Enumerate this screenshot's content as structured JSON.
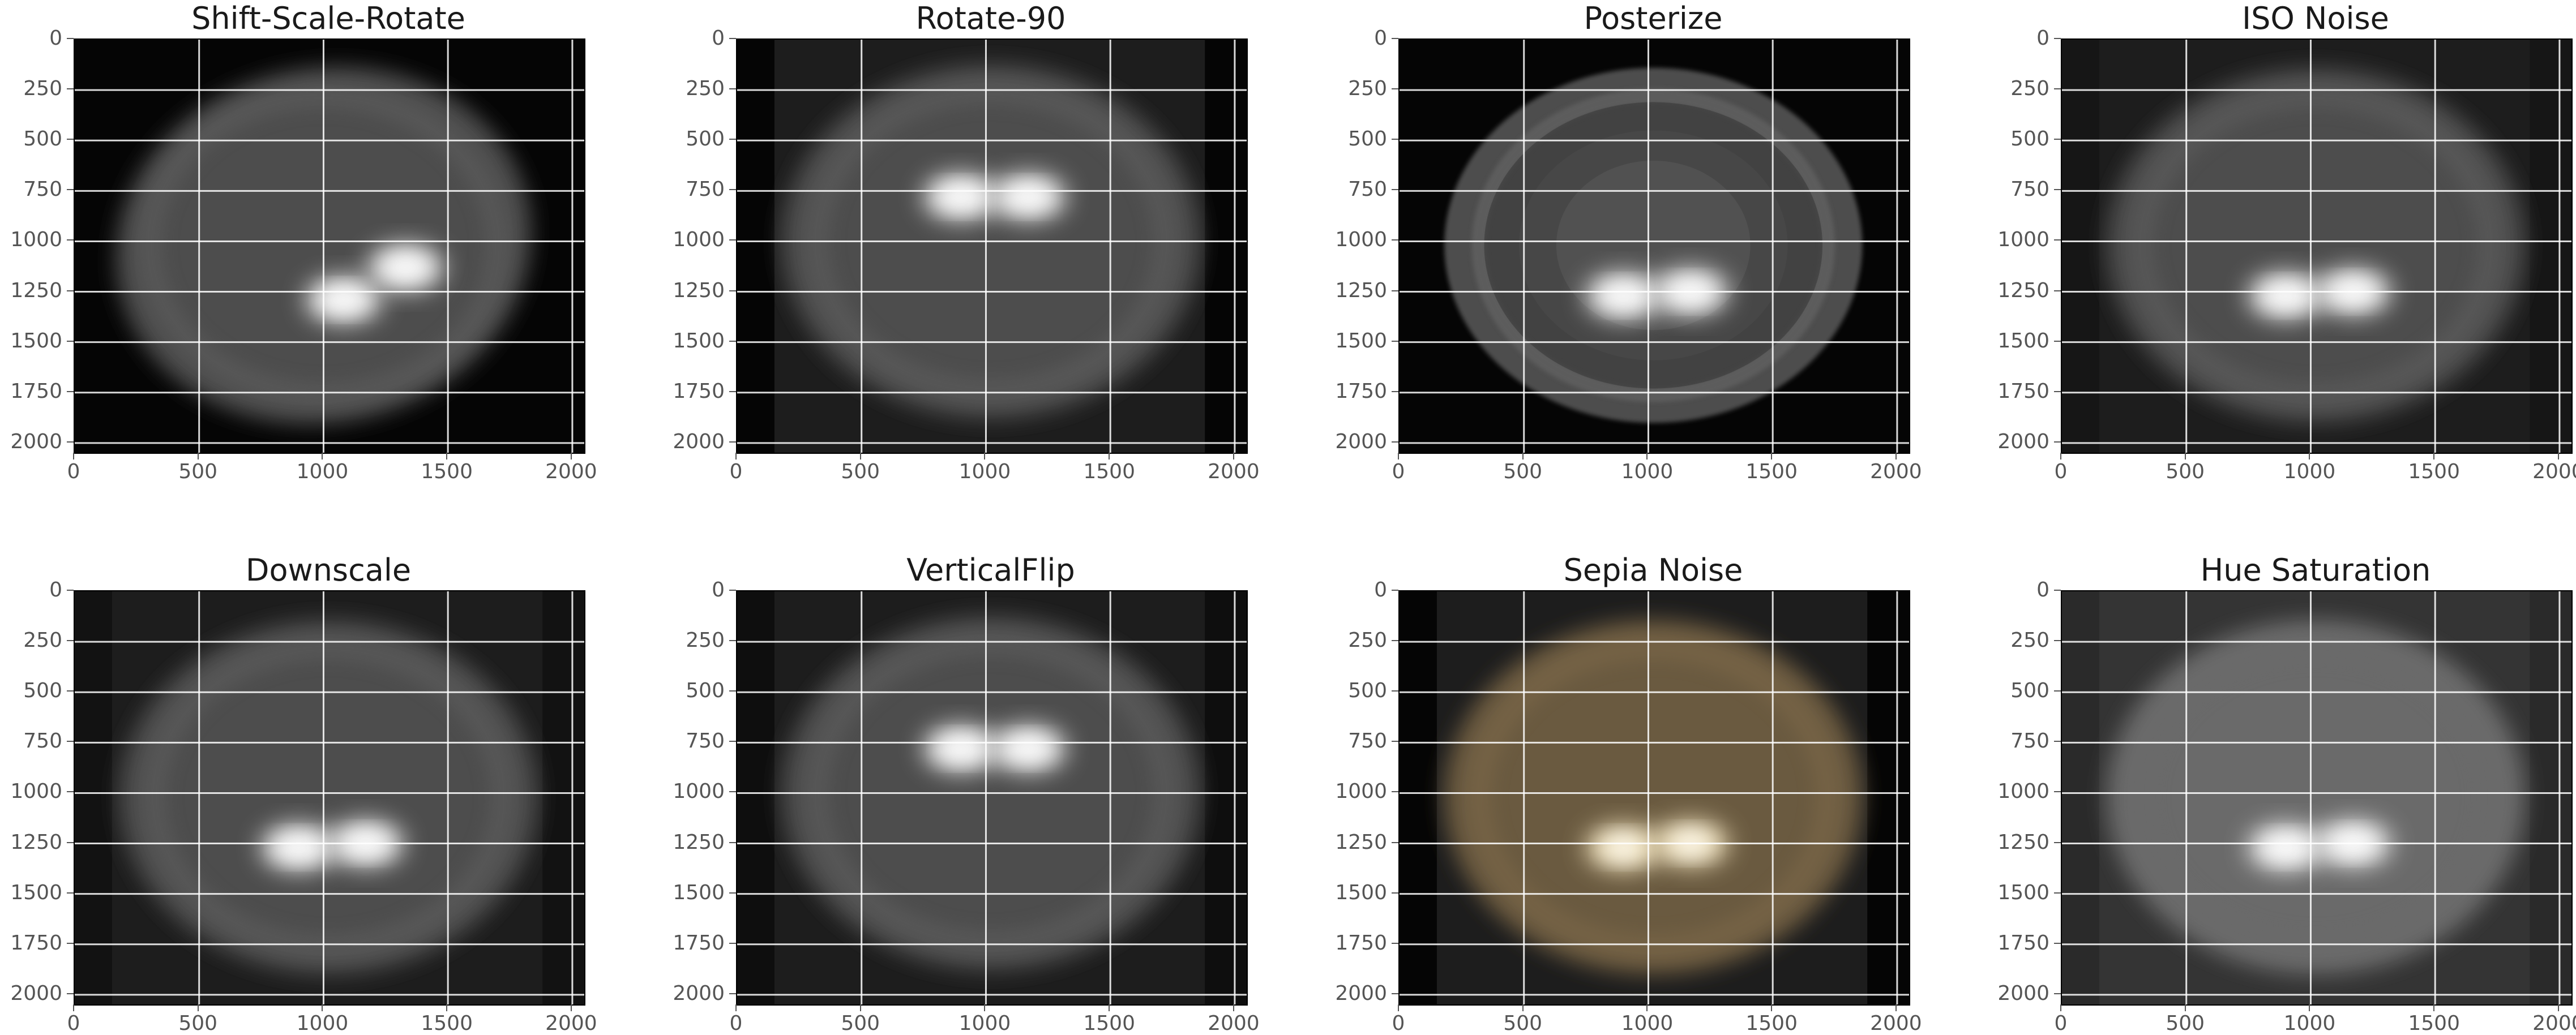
{
  "axis": {
    "y_ticks": [
      "0",
      "250",
      "500",
      "750",
      "1000",
      "1250",
      "1500",
      "1750",
      "2000"
    ],
    "x_ticks": [
      "0",
      "500",
      "1000",
      "1500",
      "2000"
    ],
    "y_values": [
      0,
      250,
      500,
      750,
      1000,
      1250,
      1500,
      1750,
      2000
    ],
    "x_values": [
      0,
      500,
      1000,
      1500,
      2000
    ],
    "range": [
      0,
      2048
    ]
  },
  "panels": [
    {
      "title": "Shift-Scale-Rotate",
      "variant": "shift",
      "tint": "#ffffff"
    },
    {
      "title": "Rotate-90",
      "variant": "rot90",
      "tint": "#ffffff"
    },
    {
      "title": "Posterize",
      "variant": "poster",
      "tint": "#ffffff"
    },
    {
      "title": "ISO Noise",
      "variant": "iso",
      "tint": "#ffffff"
    },
    {
      "title": "Downscale",
      "variant": "down",
      "tint": "#ffffff"
    },
    {
      "title": "VerticalFlip",
      "variant": "vflip",
      "tint": "#ffffff"
    },
    {
      "title": "Sepia Noise",
      "variant": "sepia",
      "tint": "#f3d7a2"
    },
    {
      "title": "Hue Saturation",
      "variant": "hue",
      "tint": "#ffffff"
    }
  ]
}
